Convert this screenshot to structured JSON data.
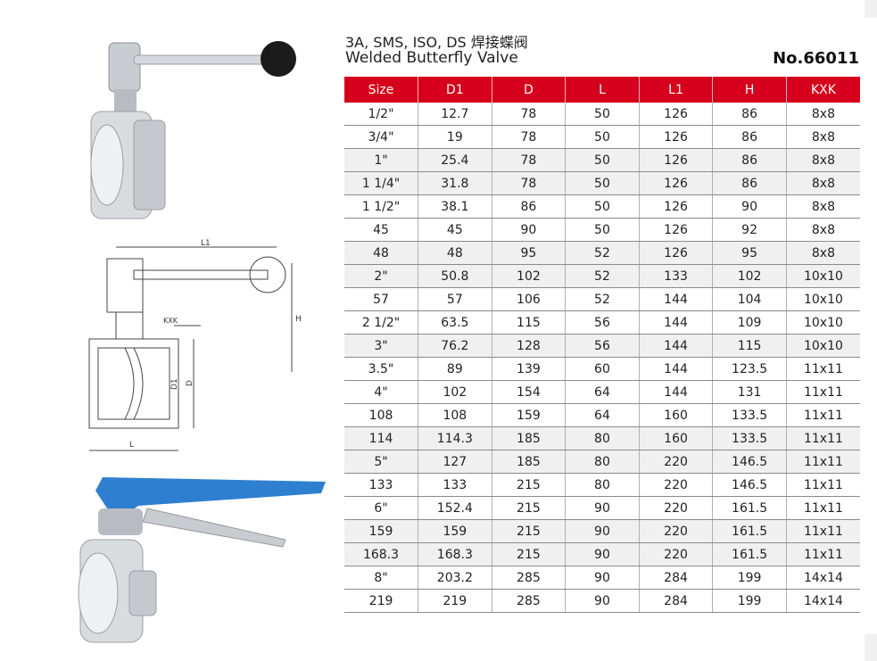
{
  "header": {
    "title_line1": "3A, SMS, ISO, DS 焊接蝶阀",
    "title_line2": "Welded Butterfly Valve",
    "product_no": "No.66011"
  },
  "colors": {
    "header_bg": "#d6001c",
    "header_text": "#ffffff",
    "shaded_row": "#f0f0f0",
    "handle_blue": "#2f7fd0"
  },
  "drawing_labels": {
    "l1": "L1",
    "h": "H",
    "kxk": "KXK",
    "d1": "D1",
    "d": "D",
    "l": "L"
  },
  "table": {
    "columns": [
      "Size",
      "D1",
      "D",
      "L",
      "L1",
      "H",
      "KXK"
    ],
    "rows": [
      {
        "cells": [
          "1/2\"",
          "12.7",
          "78",
          "50",
          "126",
          "86",
          "8x8"
        ],
        "shaded": false
      },
      {
        "cells": [
          "3/4\"",
          "19",
          "78",
          "50",
          "126",
          "86",
          "8x8"
        ],
        "shaded": false
      },
      {
        "cells": [
          "1\"",
          "25.4",
          "78",
          "50",
          "126",
          "86",
          "8x8"
        ],
        "shaded": true
      },
      {
        "cells": [
          "1  1/4\"",
          "31.8",
          "78",
          "50",
          "126",
          "86",
          "8x8"
        ],
        "shaded": true
      },
      {
        "cells": [
          "1  1/2\"",
          "38.1",
          "86",
          "50",
          "126",
          "90",
          "8x8"
        ],
        "shaded": false
      },
      {
        "cells": [
          "45",
          "45",
          "90",
          "50",
          "126",
          "92",
          "8x8"
        ],
        "shaded": false
      },
      {
        "cells": [
          "48",
          "48",
          "95",
          "52",
          "126",
          "95",
          "8x8"
        ],
        "shaded": true
      },
      {
        "cells": [
          "2\"",
          "50.8",
          "102",
          "52",
          "133",
          "102",
          "10x10"
        ],
        "shaded": true
      },
      {
        "cells": [
          "57",
          "57",
          "106",
          "52",
          "144",
          "104",
          "10x10"
        ],
        "shaded": false
      },
      {
        "cells": [
          "2  1/2\"",
          "63.5",
          "115",
          "56",
          "144",
          "109",
          "10x10"
        ],
        "shaded": false
      },
      {
        "cells": [
          "3\"",
          "76.2",
          "128",
          "56",
          "144",
          "115",
          "10x10"
        ],
        "shaded": true
      },
      {
        "cells": [
          "3.5\"",
          "89",
          "139",
          "60",
          "144",
          "123.5",
          "11x11"
        ],
        "shaded": false
      },
      {
        "cells": [
          "4\"",
          "102",
          "154",
          "64",
          "144",
          "131",
          "11x11"
        ],
        "shaded": false
      },
      {
        "cells": [
          "108",
          "108",
          "159",
          "64",
          "160",
          "133.5",
          "11x11"
        ],
        "shaded": false
      },
      {
        "cells": [
          "114",
          "114.3",
          "185",
          "80",
          "160",
          "133.5",
          "11x11"
        ],
        "shaded": true
      },
      {
        "cells": [
          "5\"",
          "127",
          "185",
          "80",
          "220",
          "146.5",
          "11x11"
        ],
        "shaded": true
      },
      {
        "cells": [
          "133",
          "133",
          "215",
          "80",
          "220",
          "146.5",
          "11x11"
        ],
        "shaded": false
      },
      {
        "cells": [
          "6\"",
          "152.4",
          "215",
          "90",
          "220",
          "161.5",
          "11x11"
        ],
        "shaded": false
      },
      {
        "cells": [
          "159",
          "159",
          "215",
          "90",
          "220",
          "161.5",
          "11x11"
        ],
        "shaded": true
      },
      {
        "cells": [
          "168.3",
          "168.3",
          "215",
          "90",
          "220",
          "161.5",
          "11x11"
        ],
        "shaded": true
      },
      {
        "cells": [
          "8\"",
          "203.2",
          "285",
          "90",
          "284",
          "199",
          "14x14"
        ],
        "shaded": false
      },
      {
        "cells": [
          "219",
          "219",
          "285",
          "90",
          "284",
          "199",
          "14x14"
        ],
        "shaded": false
      }
    ]
  }
}
